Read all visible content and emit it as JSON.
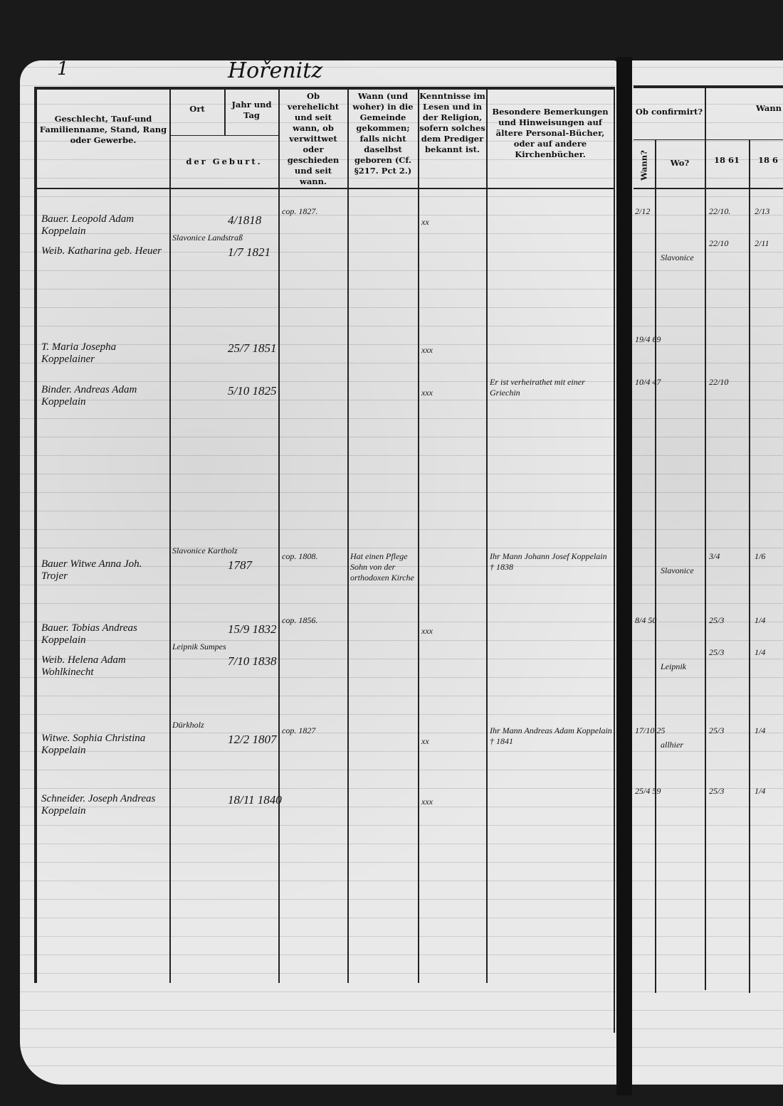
{
  "page": {
    "number": "1",
    "title": "Hořenitz"
  },
  "headers": {
    "name": "Geschlecht, Tauf-und Familienname, Stand, Rang oder Gewerbe.",
    "place": "Ort",
    "date": "Jahr und Tag",
    "birth": "der Geburt.",
    "married": "Ob verehelicht und seit wann, ob verwittwet oder geschieden und seit wann.",
    "arrival": "Wann (und woher) in die Gemeinde gekommen; falls nicht daselbst geboren (Cf. §217. Pct 2.)",
    "knowledge": "Kenntnisse im Lesen und in der Religion, sofern solches dem Prediger bekannt ist.",
    "remarks": "Besondere Bemerkungen und Hinweisungen auf ältere Personal-Bücher, oder auf andere Kirchenbücher.",
    "confirmed": "Ob confirmirt?",
    "when": "Wann?",
    "where": "Wo?",
    "communion": "Wann",
    "year1": "18 61",
    "year2": "18 6"
  },
  "entries": [
    {
      "name": "Bauer. Leopold Adam Koppelain",
      "date": "4/1818",
      "married": "cop. 1827.",
      "knowledge": "xx",
      "conf_when": "2/12",
      "c1": "22/10.",
      "c2": "2/13"
    },
    {
      "name": "Weib. Katharina geb. Heuer",
      "place": "Slavonice Landstraß",
      "date": "1/7 1821",
      "knowledge": "",
      "conf_where": "Slavonice",
      "c1": "22/10",
      "c2": "2/11"
    },
    {
      "name": "T. Maria Josepha Koppelainer",
      "date": "25/7 1851",
      "knowledge": "xxx",
      "conf_when": "19/4 69"
    },
    {
      "name": "Binder. Andreas Adam Koppelain",
      "date": "5/10 1825",
      "knowledge": "xxx",
      "remarks": "Er ist verheirathet mit einer Griechin",
      "conf_when": "10/4 47",
      "c1": "22/10"
    },
    {
      "name": "Bauer Witwe Anna Joh. Trojer",
      "place": "Slavonice Kartholz",
      "date": "1787",
      "married": "cop. 1808.",
      "arrival": "Hat einen Pflege Sohn von der orthodoxen Kirche",
      "remarks": "Ihr Mann Johann Josef Koppelain † 1838",
      "conf_where": "Slavonice",
      "c1": "3/4",
      "c2": "1/6"
    },
    {
      "name": "Bauer. Tobias Andreas Koppelain",
      "date": "15/9 1832",
      "married": "cop. 1856.",
      "knowledge": "xxx",
      "conf_when": "8/4 50",
      "c1": "25/3",
      "c2": "1/4"
    },
    {
      "name": "Weib. Helena Adam Wohlkinecht",
      "place": "Leipnik Sumpes",
      "date": "7/10 1838",
      "conf_where": "Leipnik",
      "c1": "25/3",
      "c2": "1/4"
    },
    {
      "name": "Witwe. Sophia Christina Koppelain",
      "place": "Dürkholz",
      "date": "12/2 1807",
      "married": "cop. 1827",
      "knowledge": "xx",
      "remarks": "Ihr Mann Andreas Adam Koppelain † 1841",
      "conf_when": "17/10 25",
      "conf_where": "allhier",
      "c1": "25/3",
      "c2": "1/4"
    },
    {
      "name": "Schneider. Joseph Andreas Koppelain",
      "date": "18/11 1840",
      "knowledge": "xxx",
      "conf_when": "25/4 59",
      "c1": "25/3",
      "c2": "1/4"
    }
  ]
}
